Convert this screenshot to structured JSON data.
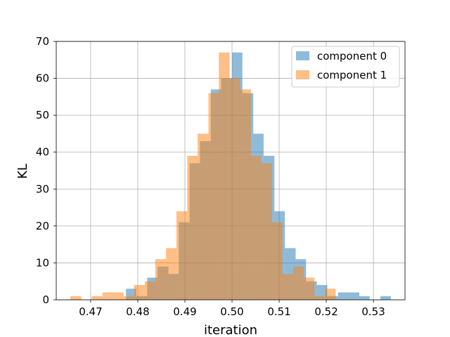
{
  "chart_data": {
    "type": "bar",
    "subtype": "overlaid-histogram",
    "xlabel": "iteration",
    "ylabel": "KL",
    "xlim": [
      0.4627,
      0.5367
    ],
    "ylim": [
      0,
      70
    ],
    "xticks": [
      0.47,
      0.48,
      0.49,
      0.5,
      0.51,
      0.52,
      0.53
    ],
    "xtick_labels": [
      "0.47",
      "0.48",
      "0.49",
      "0.50",
      "0.51",
      "0.52",
      "0.53"
    ],
    "yticks": [
      0,
      10,
      20,
      30,
      40,
      50,
      60,
      70
    ],
    "ytick_labels": [
      "0",
      "10",
      "20",
      "30",
      "40",
      "50",
      "60",
      "70"
    ],
    "grid": true,
    "legend_position": "top-right",
    "series": [
      {
        "name": "component 0",
        "color": "#1f77b4",
        "opacity": 0.5,
        "bins": [
          {
            "x0": 0.4775,
            "x1": 0.4797,
            "count": 3
          },
          {
            "x0": 0.4797,
            "x1": 0.482,
            "count": 1
          },
          {
            "x0": 0.482,
            "x1": 0.4842,
            "count": 6
          },
          {
            "x0": 0.4842,
            "x1": 0.4865,
            "count": 9
          },
          {
            "x0": 0.4865,
            "x1": 0.4887,
            "count": 7
          },
          {
            "x0": 0.4887,
            "x1": 0.491,
            "count": 21
          },
          {
            "x0": 0.491,
            "x1": 0.4932,
            "count": 37
          },
          {
            "x0": 0.4932,
            "x1": 0.4955,
            "count": 43
          },
          {
            "x0": 0.4955,
            "x1": 0.4977,
            "count": 57
          },
          {
            "x0": 0.4977,
            "x1": 0.5,
            "count": 60
          },
          {
            "x0": 0.5,
            "x1": 0.5022,
            "count": 67
          },
          {
            "x0": 0.5022,
            "x1": 0.5045,
            "count": 56
          },
          {
            "x0": 0.5045,
            "x1": 0.5067,
            "count": 45
          },
          {
            "x0": 0.5067,
            "x1": 0.509,
            "count": 39
          },
          {
            "x0": 0.509,
            "x1": 0.5112,
            "count": 24
          },
          {
            "x0": 0.5112,
            "x1": 0.5135,
            "count": 14
          },
          {
            "x0": 0.5135,
            "x1": 0.5157,
            "count": 11
          },
          {
            "x0": 0.5157,
            "x1": 0.518,
            "count": 5
          },
          {
            "x0": 0.518,
            "x1": 0.5202,
            "count": 4
          },
          {
            "x0": 0.5202,
            "x1": 0.5225,
            "count": 1
          },
          {
            "x0": 0.5225,
            "x1": 0.5247,
            "count": 2
          },
          {
            "x0": 0.5247,
            "x1": 0.527,
            "count": 2
          },
          {
            "x0": 0.527,
            "x1": 0.5292,
            "count": 1
          },
          {
            "x0": 0.5315,
            "x1": 0.5337,
            "count": 1
          }
        ]
      },
      {
        "name": "component 1",
        "color": "#ff7f0e",
        "opacity": 0.5,
        "bins": [
          {
            "x0": 0.4657,
            "x1": 0.468,
            "count": 1
          },
          {
            "x0": 0.4702,
            "x1": 0.4725,
            "count": 1
          },
          {
            "x0": 0.4725,
            "x1": 0.4747,
            "count": 2
          },
          {
            "x0": 0.4747,
            "x1": 0.477,
            "count": 2
          },
          {
            "x0": 0.477,
            "x1": 0.4792,
            "count": 1
          },
          {
            "x0": 0.4792,
            "x1": 0.4815,
            "count": 4
          },
          {
            "x0": 0.4815,
            "x1": 0.4837,
            "count": 5
          },
          {
            "x0": 0.4837,
            "x1": 0.486,
            "count": 11
          },
          {
            "x0": 0.486,
            "x1": 0.4882,
            "count": 14
          },
          {
            "x0": 0.4882,
            "x1": 0.4905,
            "count": 24
          },
          {
            "x0": 0.4905,
            "x1": 0.4927,
            "count": 39
          },
          {
            "x0": 0.4927,
            "x1": 0.495,
            "count": 45
          },
          {
            "x0": 0.495,
            "x1": 0.4972,
            "count": 56
          },
          {
            "x0": 0.4972,
            "x1": 0.4995,
            "count": 67
          },
          {
            "x0": 0.4995,
            "x1": 0.5017,
            "count": 60
          },
          {
            "x0": 0.5017,
            "x1": 0.504,
            "count": 57
          },
          {
            "x0": 0.504,
            "x1": 0.5062,
            "count": 39
          },
          {
            "x0": 0.5062,
            "x1": 0.5085,
            "count": 37
          },
          {
            "x0": 0.5085,
            "x1": 0.5107,
            "count": 21
          },
          {
            "x0": 0.5107,
            "x1": 0.513,
            "count": 7
          },
          {
            "x0": 0.513,
            "x1": 0.5152,
            "count": 9
          },
          {
            "x0": 0.5152,
            "x1": 0.5175,
            "count": 6
          },
          {
            "x0": 0.5175,
            "x1": 0.5197,
            "count": 1
          },
          {
            "x0": 0.5197,
            "x1": 0.522,
            "count": 3
          }
        ]
      }
    ]
  }
}
